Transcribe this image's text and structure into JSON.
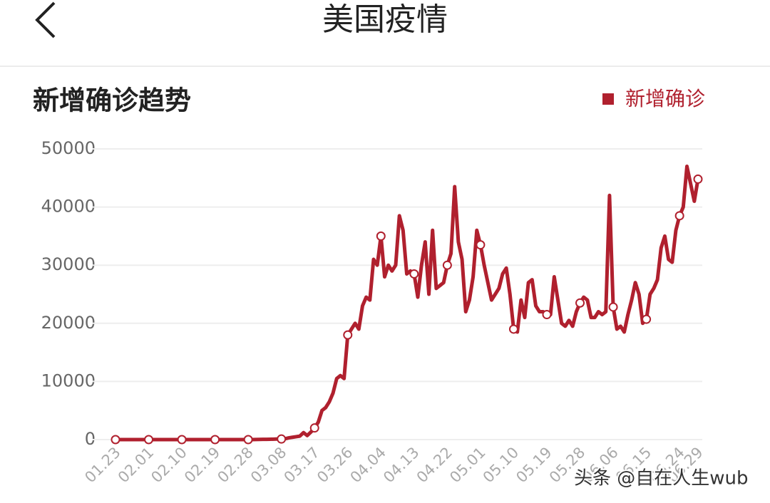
{
  "header": {
    "title": "美国疫情"
  },
  "watermark": "头条 @自在人生wub",
  "chart_data": {
    "type": "line",
    "title": "新增确诊趋势",
    "categories": [
      "01.23",
      null,
      null,
      null,
      null,
      null,
      null,
      null,
      null,
      "02.01",
      null,
      null,
      null,
      null,
      null,
      null,
      null,
      null,
      "02.10",
      null,
      null,
      null,
      null,
      null,
      null,
      null,
      null,
      "02.19",
      null,
      null,
      null,
      null,
      null,
      null,
      null,
      null,
      "02.28",
      null,
      null,
      null,
      null,
      null,
      null,
      null,
      null,
      "03.08",
      null,
      null,
      null,
      null,
      null,
      null,
      null,
      null,
      "03.17",
      null,
      null,
      null,
      null,
      null,
      null,
      null,
      null,
      "03.26",
      null,
      null,
      null,
      null,
      null,
      null,
      null,
      null,
      "04.04",
      null,
      null,
      null,
      null,
      null,
      null,
      null,
      null,
      "04.13",
      null,
      null,
      null,
      null,
      null,
      null,
      null,
      null,
      "04.22",
      null,
      null,
      null,
      null,
      null,
      null,
      null,
      null,
      "05.01",
      null,
      null,
      null,
      null,
      null,
      null,
      null,
      null,
      "05.10",
      null,
      null,
      null,
      null,
      null,
      null,
      null,
      null,
      "05.19",
      null,
      null,
      null,
      null,
      null,
      null,
      null,
      null,
      "05.28",
      null,
      null,
      null,
      null,
      null,
      null,
      null,
      null,
      "06.06",
      null,
      null,
      null,
      null,
      null,
      null,
      null,
      null,
      "06.15",
      null,
      null,
      null,
      null,
      null,
      null,
      null,
      null,
      "06.24",
      null,
      null,
      null,
      null,
      "06.29"
    ],
    "series": [
      {
        "name": "新增确诊",
        "color": "#b0202e",
        "values": [
          0,
          0,
          0,
          0,
          0,
          0,
          0,
          0,
          0,
          0,
          0,
          0,
          0,
          0,
          0,
          0,
          0,
          0,
          0,
          0,
          0,
          0,
          0,
          0,
          0,
          0,
          0,
          0,
          0,
          0,
          0,
          0,
          0,
          0,
          0,
          0,
          0,
          0,
          20,
          30,
          40,
          50,
          60,
          80,
          100,
          100,
          150,
          300,
          400,
          500,
          600,
          1200,
          700,
          1300,
          2000,
          3000,
          5000,
          5500,
          6500,
          8000,
          10500,
          11000,
          10500,
          18000,
          19000,
          20000,
          19000,
          23000,
          24500,
          24000,
          31000,
          30000,
          35000,
          28000,
          30000,
          29000,
          30000,
          38500,
          36000,
          28500,
          29000,
          28500,
          24500,
          30000,
          34000,
          25000,
          36000,
          26000,
          26500,
          27000,
          30000,
          32000,
          43500,
          34000,
          31000,
          22000,
          24000,
          28000,
          36000,
          33500,
          30000,
          27000,
          24000,
          25000,
          26000,
          28500,
          29500,
          25000,
          19000,
          18500,
          24000,
          21000,
          27000,
          27500,
          23000,
          22000,
          22000,
          21500,
          21500,
          28000,
          24000,
          20000,
          19500,
          20500,
          19500,
          22000,
          23500,
          24500,
          24000,
          21000,
          21000,
          22000,
          21500,
          22000,
          42000,
          22800,
          19000,
          19500,
          18500,
          21500,
          24000,
          27000,
          25000,
          20000,
          20700,
          25000,
          26000,
          27500,
          33000,
          35000,
          31000,
          30500,
          36000,
          38500,
          40000,
          47000,
          44000,
          41000,
          44800
        ]
      }
    ],
    "ylim": [
      0,
      50000
    ],
    "yticks": [
      0,
      10000,
      20000,
      30000,
      40000,
      50000
    ],
    "grid": true
  }
}
